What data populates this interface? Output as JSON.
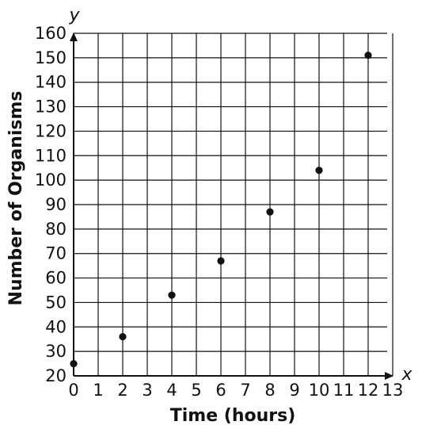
{
  "chart_data": {
    "type": "scatter",
    "title": "",
    "xlabel": "Time (hours)",
    "ylabel": "Number of Organisms",
    "x_axis_symbol": "x",
    "y_axis_symbol": "y",
    "xlim": [
      0,
      13
    ],
    "ylim": [
      20,
      160
    ],
    "x_ticks": [
      "0",
      "1",
      "2",
      "3",
      "4",
      "5",
      "6",
      "7",
      "8",
      "9",
      "10",
      "11",
      "12",
      "13"
    ],
    "y_ticks": [
      "20",
      "30",
      "40",
      "50",
      "60",
      "70",
      "80",
      "90",
      "100",
      "110",
      "120",
      "130",
      "140",
      "150",
      "160"
    ],
    "grid": true,
    "marker_color": "#111111",
    "points": [
      {
        "x": 0,
        "y": 25
      },
      {
        "x": 2,
        "y": 36
      },
      {
        "x": 4,
        "y": 53
      },
      {
        "x": 6,
        "y": 67
      },
      {
        "x": 8,
        "y": 87
      },
      {
        "x": 10,
        "y": 104
      },
      {
        "x": 12,
        "y": 151
      }
    ]
  }
}
